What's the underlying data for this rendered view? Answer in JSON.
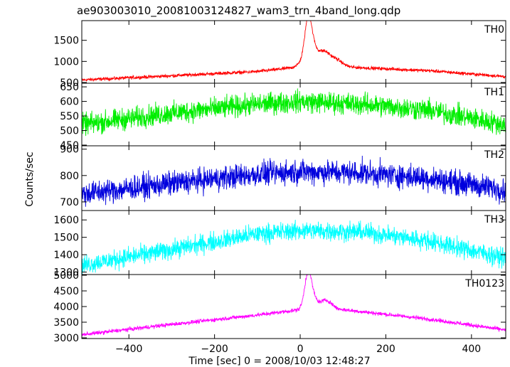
{
  "title": "ae903003010_20081003124827_wam3_trn_4band_long.qdp",
  "chart_data": {
    "type": "line",
    "title": "ae903003010_20081003124827_wam3_trn_4band_long.qdp",
    "xlabel": "Time [sec] 0 = 2008/10/03 12:48:27",
    "ylabel": "Counts/sec",
    "xlim": [
      -510,
      480
    ],
    "xticks": [
      -400,
      -200,
      0,
      200,
      400
    ],
    "xtick_labels": [
      "−400",
      "−200",
      "0",
      "200",
      "400"
    ],
    "grid": false,
    "series": [
      {
        "name": "TH0",
        "color": "#ff0000",
        "ylim": [
          500,
          1950
        ],
        "yticks": [
          500,
          1000,
          1500
        ],
        "base": [
          [
            -510,
            560
          ],
          [
            -300,
            660
          ],
          [
            -100,
            760
          ],
          [
            -20,
            850
          ],
          [
            0,
            950
          ],
          [
            100,
            870
          ],
          [
            300,
            780
          ],
          [
            480,
            640
          ]
        ],
        "noise": 28,
        "features": [
          {
            "t": 18,
            "amp": 900,
            "width": 8
          },
          {
            "t": 28,
            "amp": 380,
            "width": 10
          },
          {
            "t": 55,
            "amp": 320,
            "width": 14
          },
          {
            "t": 85,
            "amp": 150,
            "width": 14
          }
        ]
      },
      {
        "name": "TH1",
        "color": "#00ee00",
        "ylim": [
          450,
          660
        ],
        "yticks": [
          450,
          500,
          550,
          600,
          650
        ],
        "base": [
          [
            -510,
            520
          ],
          [
            -300,
            560
          ],
          [
            -100,
            590
          ],
          [
            0,
            600
          ],
          [
            150,
            590
          ],
          [
            300,
            570
          ],
          [
            480,
            520
          ]
        ],
        "noise": 26,
        "features": []
      },
      {
        "name": "TH2",
        "color": "#0000dd",
        "ylim": [
          670,
          910
        ],
        "yticks": [
          700,
          800,
          900
        ],
        "base": [
          [
            -510,
            730
          ],
          [
            -300,
            770
          ],
          [
            -100,
            805
          ],
          [
            0,
            815
          ],
          [
            150,
            810
          ],
          [
            300,
            790
          ],
          [
            480,
            745
          ]
        ],
        "noise": 32,
        "features": []
      },
      {
        "name": "TH3",
        "color": "#00ffff",
        "ylim": [
          1290,
          1650
        ],
        "yticks": [
          1300,
          1400,
          1500,
          1600
        ],
        "base": [
          [
            -510,
            1340
          ],
          [
            -300,
            1430
          ],
          [
            -100,
            1520
          ],
          [
            0,
            1540
          ],
          [
            150,
            1530
          ],
          [
            300,
            1480
          ],
          [
            480,
            1380
          ]
        ],
        "noise": 38,
        "features": []
      },
      {
        "name": "TH0123",
        "color": "#ff00ff",
        "ylim": [
          3000,
          5000
        ],
        "yticks": [
          3000,
          3500,
          4000,
          4500,
          5000
        ],
        "base": [
          [
            -510,
            3100
          ],
          [
            -300,
            3430
          ],
          [
            -100,
            3730
          ],
          [
            0,
            3900
          ],
          [
            100,
            3900
          ],
          [
            300,
            3600
          ],
          [
            480,
            3250
          ]
        ],
        "noise": 45,
        "features": [
          {
            "t": 18,
            "amp": 1000,
            "width": 8
          },
          {
            "t": 28,
            "amp": 350,
            "width": 10
          },
          {
            "t": 60,
            "amp": 300,
            "width": 14
          }
        ]
      }
    ]
  }
}
